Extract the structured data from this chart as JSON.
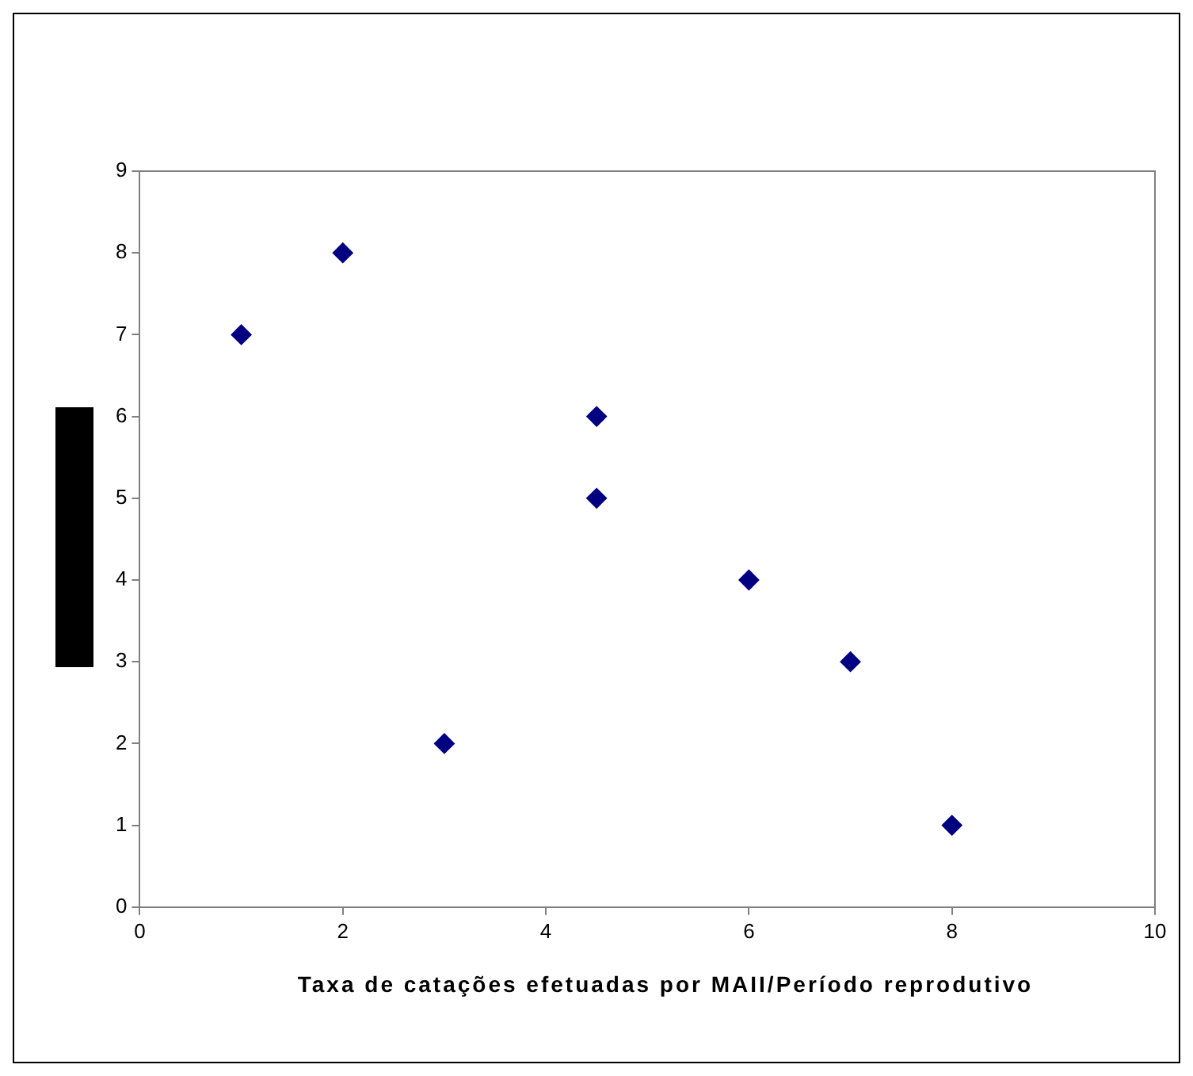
{
  "chart_data": {
    "type": "scatter",
    "xlabel": "Taxa de catações efetuadas por MAII/Período reprodutivo",
    "x": [
      1,
      2,
      3,
      4.5,
      4.5,
      6,
      7,
      8
    ],
    "series": [
      {
        "color": "#000080",
        "values": [
          7,
          8,
          2,
          6,
          5,
          4,
          3,
          1
        ]
      }
    ],
    "xlim": [
      0,
      10
    ],
    "xticks": [
      0,
      2,
      4,
      6,
      8,
      10
    ],
    "ylim": [
      0,
      9
    ],
    "yticks": [
      0,
      1,
      2,
      3,
      4,
      5,
      6,
      7,
      8,
      9
    ],
    "grid": false,
    "legend": false,
    "marker": "diamond"
  }
}
